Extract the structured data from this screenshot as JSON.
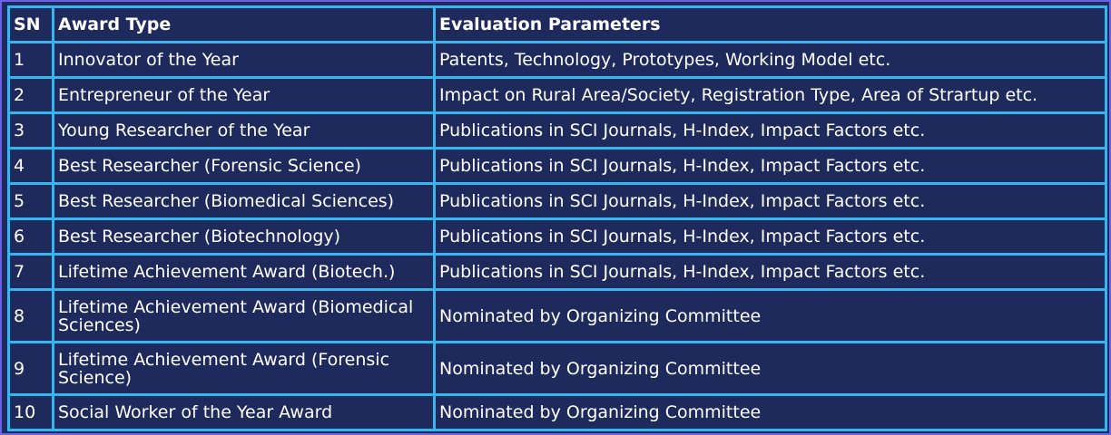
{
  "table": {
    "headers": [
      "SN",
      "Award Type",
      "Evaluation Parameters"
    ],
    "rows": [
      {
        "sn": "1",
        "award": "Innovator of the Year",
        "params": "Patents, Technology, Prototypes, Working Model etc."
      },
      {
        "sn": "2",
        "award": "Entrepreneur of the Year",
        "params": "Impact on Rural Area/Society, Registration Type, Area of Strartup etc."
      },
      {
        "sn": "3",
        "award": "Young Researcher of the Year",
        "params": "Publications in SCI Journals, H-Index, Impact Factors etc."
      },
      {
        "sn": "4",
        "award": "Best Researcher (Forensic Science)",
        "params": "Publications in SCI Journals, H-Index, Impact Factors etc."
      },
      {
        "sn": "5",
        "award": "Best Researcher (Biomedical Sciences)",
        "params": "Publications in SCI Journals, H-Index, Impact Factors etc."
      },
      {
        "sn": "6",
        "award": "Best Researcher (Biotechnology)",
        "params": "Publications in SCI Journals, H-Index, Impact Factors etc."
      },
      {
        "sn": "7",
        "award": "Lifetime Achievement Award (Biotech.)",
        "params": "Publications in SCI Journals, H-Index, Impact Factors etc."
      },
      {
        "sn": "8",
        "award": "Lifetime Achievement Award (Biomedical Sciences)",
        "params": "Nominated by Organizing Committee"
      },
      {
        "sn": "9",
        "award": "Lifetime Achievement Award (Forensic Science)",
        "params": "Nominated by Organizing Committee"
      },
      {
        "sn": "10",
        "award": "Social Worker of the Year Award",
        "params": "Nominated by Organizing Committee"
      }
    ]
  },
  "colors": {
    "background": "#1f2a5c",
    "grid": "#36b6ee",
    "outer_border": "#6a63e6",
    "text": "#ffffff"
  }
}
